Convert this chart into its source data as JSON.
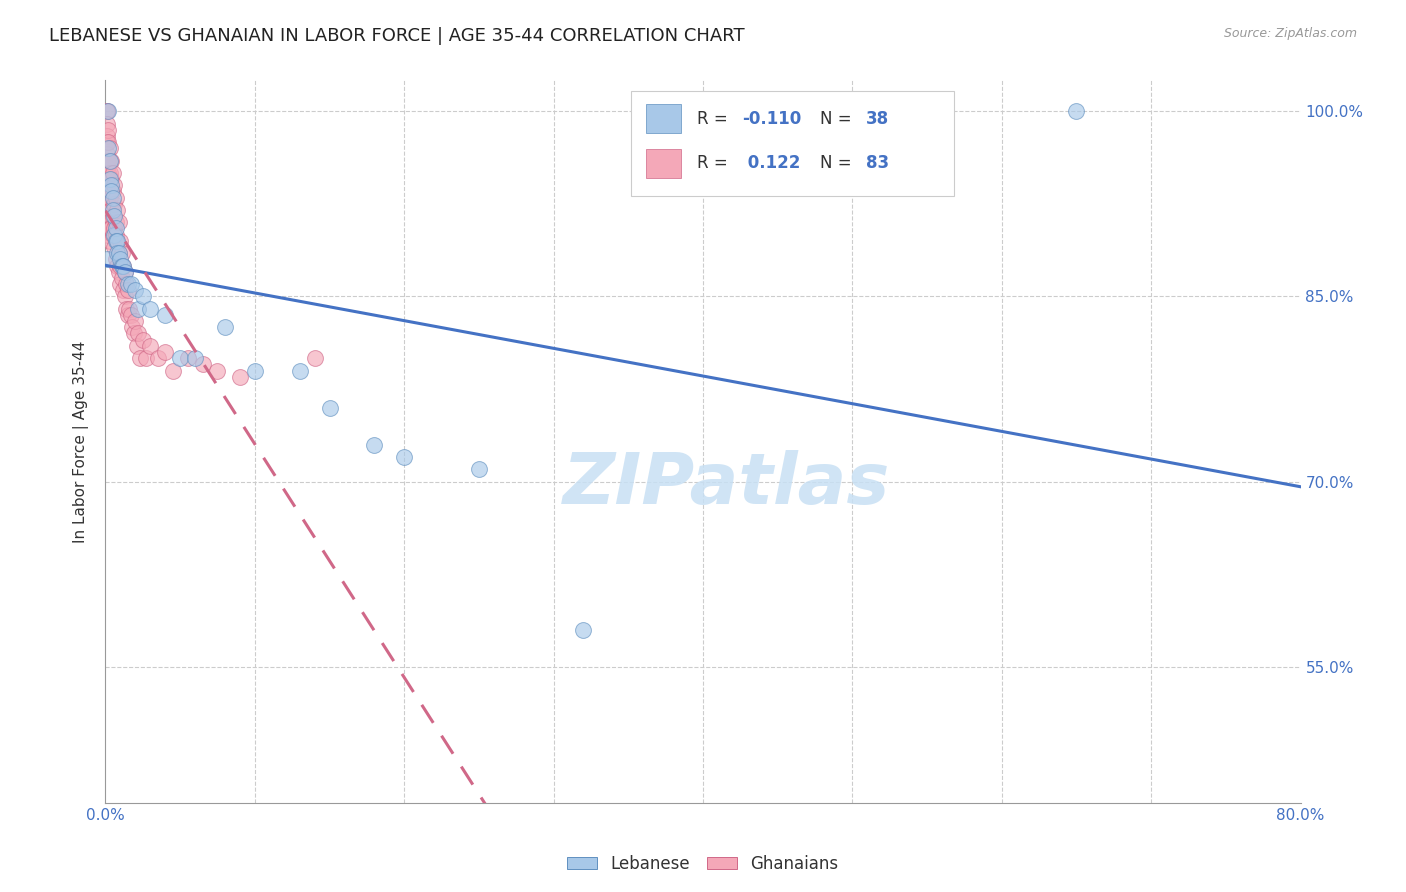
{
  "title": "LEBANESE VS GHANAIAN IN LABOR FORCE | AGE 35-44 CORRELATION CHART",
  "source": "Source: ZipAtlas.com",
  "ylabel": "In Labor Force | Age 35-44",
  "xlim": [
    0.0,
    0.8
  ],
  "ylim": [
    0.44,
    1.025
  ],
  "lebanese_color": "#a8c8e8",
  "ghanaian_color": "#f4a8b8",
  "lebanese_edge_color": "#6090c0",
  "ghanaian_edge_color": "#d06888",
  "lebanese_trend_color": "#4472c4",
  "ghanaian_trend_color": "#d06888",
  "background_color": "#ffffff",
  "grid_color": "#cccccc",
  "title_fontsize": 13,
  "axis_fontsize": 11,
  "tick_fontsize": 11,
  "watermark_text": "ZIPatlas",
  "watermark_color": "#c8e0f4",
  "R_leb": -0.11,
  "N_leb": 38,
  "R_gha": 0.122,
  "N_gha": 83,
  "lebanese_x": [
    0.001,
    0.002,
    0.002,
    0.003,
    0.003,
    0.004,
    0.004,
    0.005,
    0.005,
    0.006,
    0.006,
    0.007,
    0.007,
    0.008,
    0.008,
    0.009,
    0.01,
    0.011,
    0.012,
    0.013,
    0.015,
    0.017,
    0.02,
    0.022,
    0.025,
    0.03,
    0.04,
    0.05,
    0.06,
    0.08,
    0.1,
    0.13,
    0.15,
    0.18,
    0.2,
    0.25,
    0.32,
    0.65
  ],
  "lebanese_y": [
    0.88,
    1.0,
    0.97,
    0.96,
    0.945,
    0.94,
    0.935,
    0.93,
    0.92,
    0.915,
    0.9,
    0.905,
    0.895,
    0.895,
    0.885,
    0.885,
    0.88,
    0.875,
    0.875,
    0.87,
    0.86,
    0.86,
    0.855,
    0.84,
    0.85,
    0.84,
    0.835,
    0.8,
    0.8,
    0.825,
    0.79,
    0.79,
    0.76,
    0.73,
    0.72,
    0.71,
    0.58,
    1.0
  ],
  "ghanaian_x": [
    0.001,
    0.001,
    0.001,
    0.001,
    0.001,
    0.001,
    0.001,
    0.001,
    0.001,
    0.001,
    0.001,
    0.001,
    0.002,
    0.002,
    0.002,
    0.002,
    0.002,
    0.002,
    0.002,
    0.002,
    0.002,
    0.003,
    0.003,
    0.003,
    0.003,
    0.003,
    0.003,
    0.003,
    0.004,
    0.004,
    0.004,
    0.004,
    0.004,
    0.005,
    0.005,
    0.005,
    0.005,
    0.006,
    0.006,
    0.006,
    0.006,
    0.007,
    0.007,
    0.007,
    0.007,
    0.008,
    0.008,
    0.008,
    0.009,
    0.009,
    0.009,
    0.01,
    0.01,
    0.01,
    0.011,
    0.011,
    0.012,
    0.012,
    0.013,
    0.013,
    0.014,
    0.014,
    0.015,
    0.015,
    0.016,
    0.017,
    0.018,
    0.019,
    0.02,
    0.021,
    0.022,
    0.023,
    0.025,
    0.027,
    0.03,
    0.035,
    0.04,
    0.045,
    0.055,
    0.065,
    0.075,
    0.09,
    0.14
  ],
  "ghanaian_y": [
    1.0,
    1.0,
    0.99,
    0.98,
    0.975,
    0.965,
    0.96,
    0.955,
    0.945,
    0.94,
    0.93,
    0.92,
    0.985,
    0.975,
    0.96,
    0.95,
    0.945,
    0.935,
    0.925,
    0.91,
    0.9,
    0.97,
    0.96,
    0.95,
    0.93,
    0.915,
    0.905,
    0.895,
    0.96,
    0.945,
    0.935,
    0.92,
    0.905,
    0.95,
    0.935,
    0.915,
    0.9,
    0.94,
    0.925,
    0.905,
    0.89,
    0.93,
    0.91,
    0.9,
    0.88,
    0.92,
    0.895,
    0.875,
    0.91,
    0.885,
    0.87,
    0.895,
    0.875,
    0.86,
    0.885,
    0.865,
    0.875,
    0.855,
    0.87,
    0.85,
    0.86,
    0.84,
    0.855,
    0.835,
    0.84,
    0.835,
    0.825,
    0.82,
    0.83,
    0.81,
    0.82,
    0.8,
    0.815,
    0.8,
    0.81,
    0.8,
    0.805,
    0.79,
    0.8,
    0.795,
    0.79,
    0.785,
    0.8
  ]
}
